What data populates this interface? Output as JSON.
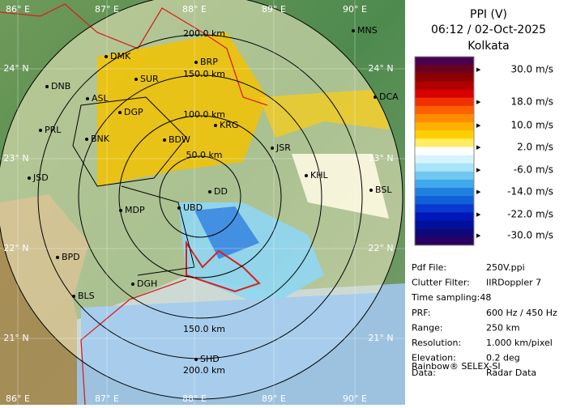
{
  "header": {
    "title": "PPI (V)",
    "time": "06:12 / 02-Oct-2025",
    "site": "Kolkata"
  },
  "legend": [
    "30.0 m/s",
    "18.0 m/s",
    "10.0 m/s",
    "2.0 m/s",
    "-6.0 m/s",
    "-14.0 m/s",
    "-22.0 m/s",
    "-30.0 m/s"
  ],
  "longitudes": [
    "86° E",
    "87° E",
    "88° E",
    "89° E",
    "90° E"
  ],
  "latitudes": [
    "24° N",
    "23° N",
    "22° N",
    "21° N"
  ],
  "rings": [
    "200.0 km",
    "150.0 km",
    "100.0 km",
    "50.0 km",
    "150.0 km",
    "200.0 km"
  ],
  "cities": [
    "MNS",
    "DMK",
    "BRP",
    "DNB",
    "ASL",
    "DCA",
    "SUR",
    "DGP",
    "KRG",
    "PRL",
    "BNK",
    "BDW",
    "JSR",
    "KHL",
    "JSD",
    "BSL",
    "MDP",
    "UBD",
    "DD",
    "BPD",
    "BLS",
    "DGH",
    "SHD"
  ],
  "metadata": [
    [
      "Pdf File:",
      "250V.ppi"
    ],
    [
      "Clutter Filter:",
      "IIRDoppler 7"
    ],
    [
      "Time sampling:",
      "48"
    ],
    [
      "PRF:",
      "600 Hz / 450 Hz"
    ],
    [
      "Range:",
      "250 km"
    ],
    [
      "Resolution:",
      "1.000 km/pixel"
    ],
    [
      "Elevation:",
      "0.2 deg"
    ],
    [
      "Data:",
      "Radar Data"
    ]
  ],
  "footer": "Rainbow® SELEX-SI"
}
